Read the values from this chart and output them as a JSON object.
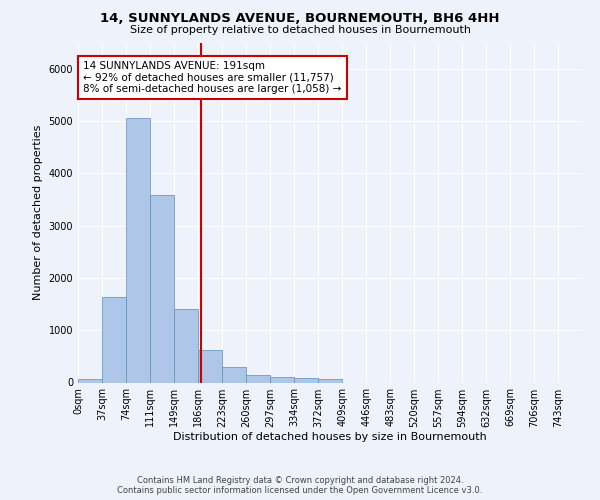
{
  "title1": "14, SUNNYLANDS AVENUE, BOURNEMOUTH, BH6 4HH",
  "title2": "Size of property relative to detached houses in Bournemouth",
  "xlabel": "Distribution of detached houses by size in Bournemouth",
  "ylabel": "Number of detached properties",
  "footer1": "Contains HM Land Registry data © Crown copyright and database right 2024.",
  "footer2": "Contains public sector information licensed under the Open Government Licence v3.0.",
  "bin_labels": [
    "0sqm",
    "37sqm",
    "74sqm",
    "111sqm",
    "149sqm",
    "186sqm",
    "223sqm",
    "260sqm",
    "297sqm",
    "334sqm",
    "372sqm",
    "409sqm",
    "446sqm",
    "483sqm",
    "520sqm",
    "557sqm",
    "594sqm",
    "632sqm",
    "669sqm",
    "706sqm",
    "743sqm"
  ],
  "bar_values": [
    70,
    1630,
    5060,
    3580,
    1410,
    620,
    290,
    150,
    100,
    80,
    60,
    0,
    0,
    0,
    0,
    0,
    0,
    0,
    0,
    0,
    0
  ],
  "bar_color": "#aec6e8",
  "bar_edge_color": "#5a8fc3",
  "vline_color": "#cc0000",
  "annotation_title": "14 SUNNYLANDS AVENUE: 191sqm",
  "annotation_line1": "← 92% of detached houses are smaller (11,757)",
  "annotation_line2": "8% of semi-detached houses are larger (1,058) →",
  "annotation_box_color": "#cc0000",
  "ylim": [
    0,
    6500
  ],
  "bin_width": 37,
  "property_sqm": 191,
  "background_color": "#eef2fb",
  "grid_color": "#ffffff",
  "title_fontsize": 9.5,
  "subtitle_fontsize": 8,
  "axis_label_fontsize": 8,
  "tick_fontsize": 7,
  "annotation_fontsize": 7.5,
  "footer_fontsize": 6
}
